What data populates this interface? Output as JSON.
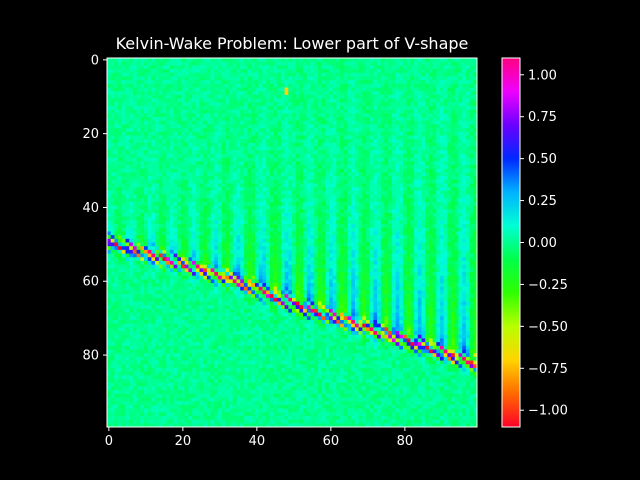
{
  "chart_data": {
    "type": "heatmap",
    "title": "Kelvin-Wake Problem: Lower part of V-shape",
    "xlabel": "",
    "ylabel": "",
    "x_ticks": [
      0,
      20,
      40,
      60,
      80
    ],
    "y_ticks": [
      0,
      20,
      40,
      60,
      80
    ],
    "xlim": [
      -0.5,
      99.5
    ],
    "ylim": [
      99.5,
      -0.5
    ],
    "grid_size": [
      100,
      100
    ],
    "colormap": "gist_rainbow_r",
    "colorbar": {
      "vmin": -1.1,
      "vmax": 1.1,
      "ticks": [
        1.0,
        0.75,
        0.5,
        0.25,
        0.0,
        -0.25,
        -0.5,
        -0.75,
        -1.0
      ],
      "tick_labels": [
        "1.00",
        "0.75",
        "0.50",
        "0.25",
        "0.00",
        "−0.25",
        "−0.50",
        "−0.75",
        "−1.00"
      ],
      "colors": [
        "#ff0028",
        "#ff6a00",
        "#ffd400",
        "#b8ff00",
        "#2eff00",
        "#00ff4a",
        "#00ffd4",
        "#00b2ff",
        "#0028ff",
        "#6a00ff",
        "#f000ff",
        "#ff0080"
      ]
    },
    "wake_crest": {
      "description_row_at_col": [
        [
          0,
          49.5
        ],
        [
          33,
          59.5
        ],
        [
          50,
          66.5
        ],
        [
          75,
          74.5
        ],
        [
          99,
          82.5
        ]
      ],
      "crest_amplitude": 1.0,
      "wavelength_cols": 4.2
    },
    "hot_spot": {
      "col": 48,
      "row": 8.5,
      "value": -0.7
    },
    "background_value": 0.0
  }
}
